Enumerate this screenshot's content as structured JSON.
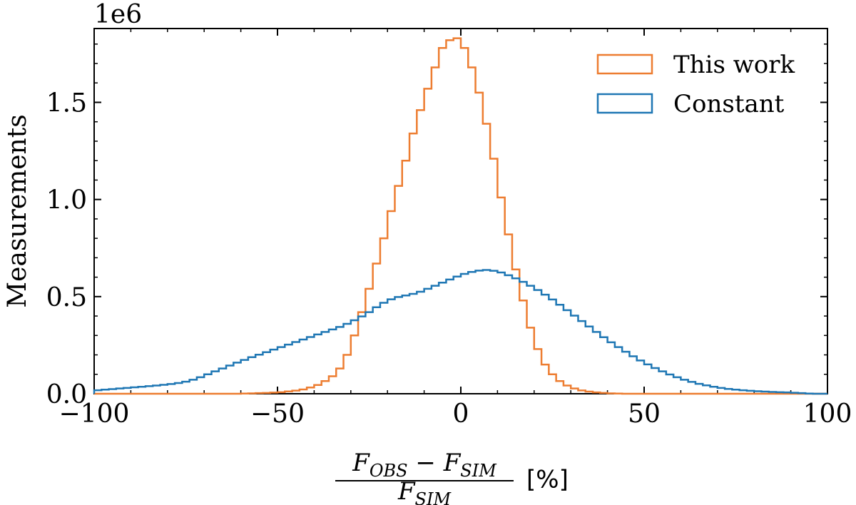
{
  "chart_data": {
    "type": "histogram",
    "title": "",
    "offset_label": "1e6",
    "ylabel": "Measurements",
    "xlabel": {
      "numerator": [
        "F",
        "OBS",
        " − ",
        "F",
        "SIM"
      ],
      "denominator": [
        "F",
        "SIM"
      ],
      "unit": "[%]"
    },
    "xlim": [
      -100,
      100
    ],
    "ylim": [
      0,
      1.88
    ],
    "xticks": [
      -100,
      -50,
      0,
      50,
      100
    ],
    "xtick_labels": [
      "−100",
      "−50",
      "0",
      "50",
      "100"
    ],
    "yticks": [
      0.0,
      0.5,
      1.0,
      1.5
    ],
    "ytick_labels": [
      "0.0",
      "0.5",
      "1.0",
      "1.5"
    ],
    "bin_edges_start": -100,
    "bin_width": 2,
    "legend_position": "top-right",
    "series": [
      {
        "name": "This work",
        "color": "#ed7d31",
        "values": [
          0,
          0,
          0,
          0,
          0,
          0,
          0,
          0,
          0,
          0,
          0,
          0,
          0,
          0,
          0,
          0,
          0,
          0,
          0,
          0,
          0.001,
          0.002,
          0.003,
          0.004,
          0.006,
          0.008,
          0.012,
          0.016,
          0.022,
          0.032,
          0.045,
          0.065,
          0.09,
          0.13,
          0.2,
          0.3,
          0.42,
          0.54,
          0.67,
          0.8,
          0.94,
          1.07,
          1.2,
          1.34,
          1.46,
          1.57,
          1.68,
          1.78,
          1.82,
          1.83,
          1.78,
          1.68,
          1.55,
          1.39,
          1.21,
          1.01,
          0.82,
          0.64,
          0.48,
          0.34,
          0.23,
          0.15,
          0.1,
          0.065,
          0.042,
          0.027,
          0.017,
          0.011,
          0.007,
          0.004,
          0.002,
          0.001,
          0,
          0,
          0,
          0,
          0,
          0,
          0,
          0,
          0,
          0,
          0,
          0,
          0,
          0,
          0,
          0,
          0,
          0,
          0,
          0,
          0,
          0,
          0,
          0,
          0,
          0,
          0,
          0
        ]
      },
      {
        "name": "Constant",
        "color": "#1f77b4",
        "values": [
          0.018,
          0.021,
          0.024,
          0.027,
          0.03,
          0.033,
          0.036,
          0.039,
          0.042,
          0.046,
          0.05,
          0.055,
          0.062,
          0.072,
          0.085,
          0.1,
          0.115,
          0.13,
          0.145,
          0.16,
          0.174,
          0.188,
          0.201,
          0.214,
          0.227,
          0.24,
          0.253,
          0.266,
          0.279,
          0.292,
          0.305,
          0.318,
          0.331,
          0.344,
          0.36,
          0.378,
          0.398,
          0.42,
          0.445,
          0.468,
          0.486,
          0.498,
          0.506,
          0.514,
          0.525,
          0.54,
          0.556,
          0.572,
          0.588,
          0.603,
          0.617,
          0.627,
          0.634,
          0.637,
          0.633,
          0.624,
          0.61,
          0.594,
          0.576,
          0.556,
          0.534,
          0.51,
          0.485,
          0.458,
          0.43,
          0.402,
          0.374,
          0.346,
          0.318,
          0.291,
          0.265,
          0.24,
          0.216,
          0.193,
          0.171,
          0.151,
          0.132,
          0.115,
          0.099,
          0.085,
          0.072,
          0.061,
          0.051,
          0.043,
          0.036,
          0.03,
          0.025,
          0.021,
          0.018,
          0.015,
          0.013,
          0.011,
          0.009,
          0.008,
          0.007,
          0.005,
          0.003,
          0.001,
          0,
          0
        ]
      }
    ]
  }
}
